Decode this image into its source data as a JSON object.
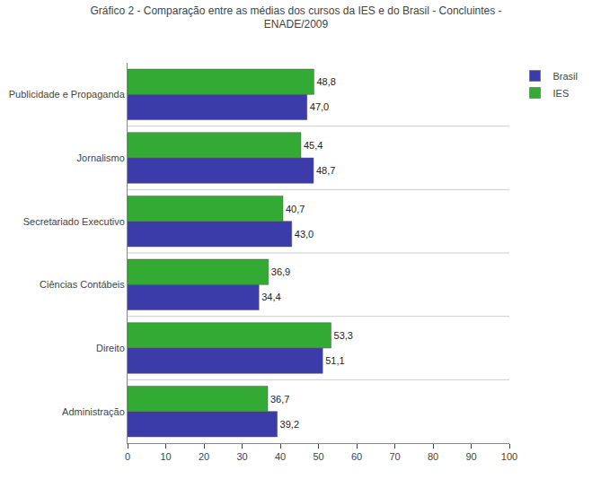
{
  "chart_data": {
    "type": "bar",
    "orientation": "horizontal",
    "title": "Gráfico 2 - Comparação entre as médias dos cursos da IES e do Brasil - Concluintes -\nENADE/2009",
    "categories": [
      "Administração",
      "Direito",
      "Ciências Contábeis",
      "Secretariado Executivo",
      "Jornalismo",
      "Publicidade e Propaganda"
    ],
    "series": [
      {
        "name": "Brasil",
        "color": "#3B3BAA",
        "values": [
          39.2,
          51.1,
          34.4,
          43.0,
          48.7,
          47.0
        ],
        "value_labels": [
          "39,2",
          "51,1",
          "34,4",
          "43,0",
          "48,7",
          "47,0"
        ]
      },
      {
        "name": "IES",
        "color": "#33AA33",
        "values": [
          36.7,
          53.3,
          36.9,
          40.7,
          45.4,
          48.8
        ],
        "value_labels": [
          "36,7",
          "53,3",
          "36,9",
          "40,7",
          "45,4",
          "48,8"
        ]
      }
    ],
    "xlim": [
      0,
      100
    ],
    "xticks": [
      0,
      10,
      20,
      30,
      40,
      50,
      60,
      70,
      80,
      90,
      100
    ],
    "grid": false,
    "legend": "upper right",
    "data_labels": true
  }
}
